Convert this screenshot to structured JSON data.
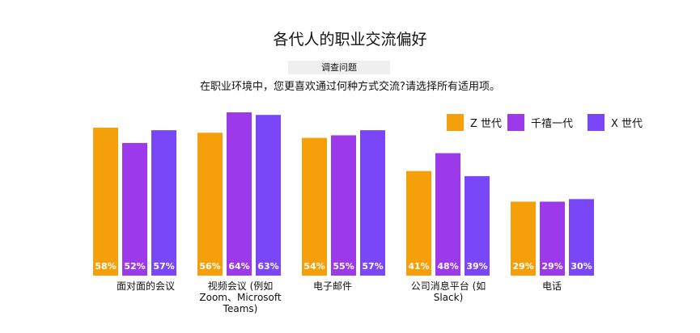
{
  "chart_data": {
    "type": "bar",
    "title": "各代人的职业交流偏好",
    "question_label": "调查问题",
    "question": "在职业环境中，您更喜欢通过何种方式交流?请选择所有适用项。",
    "categories": [
      "面对面的会议",
      "视频会议 (例如 Zoom、Microsoft Teams)",
      "电子邮件",
      "公司消息平台 (如 Slack)",
      "电话"
    ],
    "series": [
      {
        "name": "Z 世代",
        "color": "#f59f0a",
        "values": [
          58,
          56,
          54,
          41,
          29
        ],
        "labels": [
          "58%",
          "56%",
          "54%",
          "41%",
          "29%"
        ]
      },
      {
        "name": "千禧一代",
        "color": "#9c39ea",
        "values": [
          52,
          64,
          55,
          48,
          29
        ],
        "labels": [
          "52%",
          "64%",
          "55%",
          "48%",
          "29%"
        ]
      },
      {
        "name": "X 世代",
        "color": "#7a47f8",
        "values": [
          57,
          63,
          57,
          39,
          30
        ],
        "labels": [
          "57%",
          "63%",
          "57%",
          "39%",
          "30%"
        ]
      }
    ],
    "legend_position": "top-right",
    "ylim": [
      0,
      64
    ],
    "grid": false
  }
}
